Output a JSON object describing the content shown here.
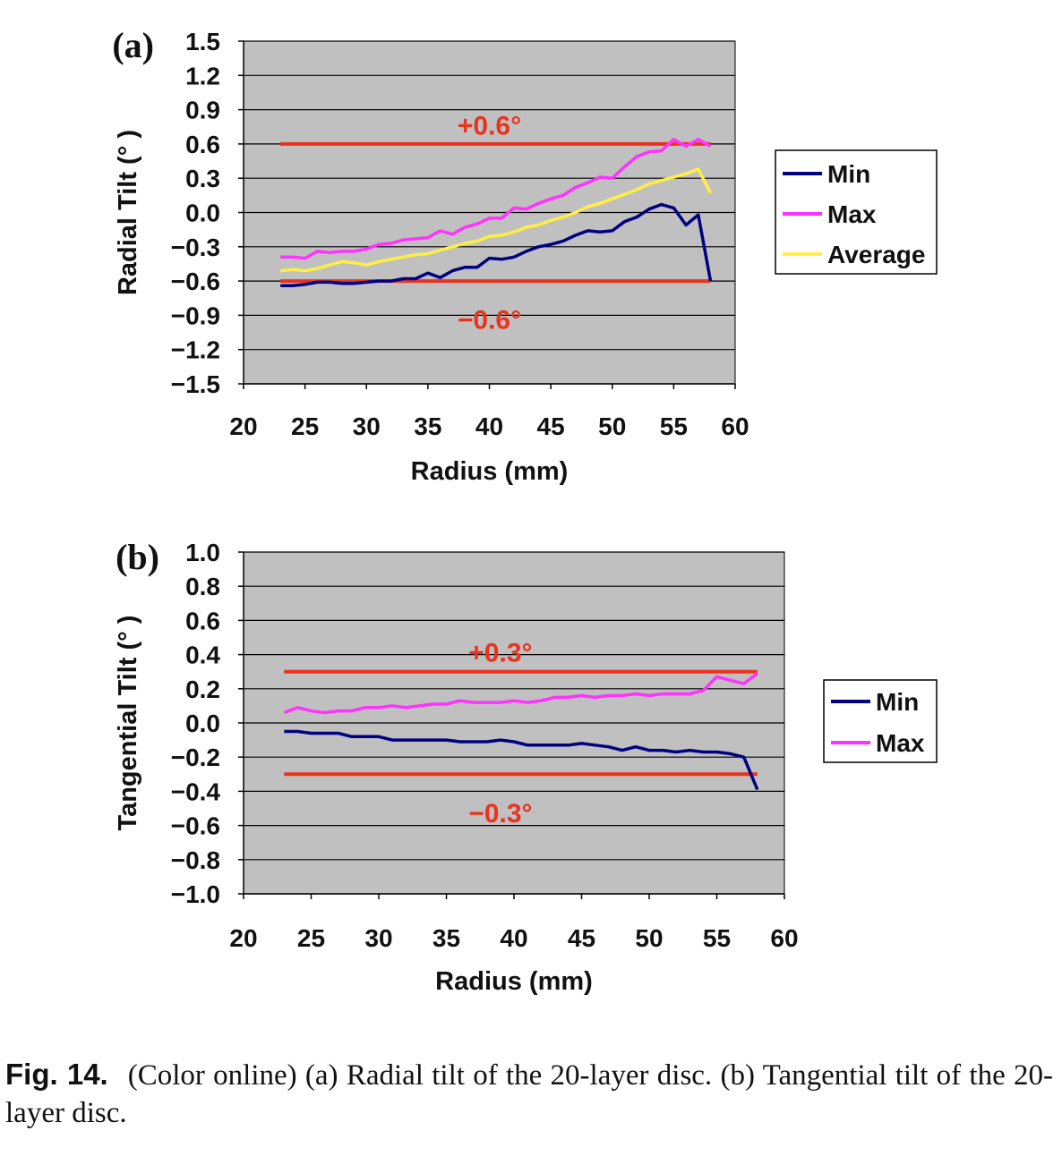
{
  "chart_data": [
    {
      "panel": "(a)",
      "type": "line",
      "xlabel": "Radius (mm)",
      "ylabel": "Radial Tilt (° )",
      "xlim": [
        20,
        60
      ],
      "ylim": [
        -1.5,
        1.5
      ],
      "xticks": [
        "20",
        "25",
        "30",
        "35",
        "40",
        "45",
        "50",
        "55",
        "60"
      ],
      "yticks": [
        "1.5",
        "1.2",
        "0.9",
        "0.6",
        "0.3",
        "0.0",
        "−0.3",
        "−0.6",
        "−0.9",
        "−1.2",
        "−1.5"
      ],
      "ytick_values": [
        1.5,
        1.2,
        0.9,
        0.6,
        0.3,
        0.0,
        -0.3,
        -0.6,
        -0.9,
        -1.2,
        -1.5
      ],
      "grid": true,
      "plot_background": "#c0c0c0",
      "legend_placement": "right",
      "x": [
        23,
        24,
        25,
        26,
        27,
        28,
        29,
        30,
        31,
        32,
        33,
        34,
        35,
        36,
        37,
        38,
        39,
        40,
        41,
        42,
        43,
        44,
        45,
        46,
        47,
        48,
        49,
        50,
        51,
        52,
        53,
        54,
        55,
        56,
        57,
        58
      ],
      "series": [
        {
          "name": "Min",
          "color": "#000080",
          "values": [
            -0.64,
            -0.64,
            -0.63,
            -0.61,
            -0.61,
            -0.62,
            -0.62,
            -0.61,
            -0.6,
            -0.6,
            -0.58,
            -0.58,
            -0.53,
            -0.57,
            -0.51,
            -0.48,
            -0.48,
            -0.4,
            -0.41,
            -0.39,
            -0.34,
            -0.3,
            -0.28,
            -0.25,
            -0.2,
            -0.16,
            -0.17,
            -0.16,
            -0.08,
            -0.04,
            0.03,
            0.07,
            0.04,
            -0.11,
            -0.02,
            -0.6
          ]
        },
        {
          "name": "Max",
          "color": "#ff33ff",
          "values": [
            -0.39,
            -0.39,
            -0.4,
            -0.34,
            -0.35,
            -0.34,
            -0.34,
            -0.32,
            -0.28,
            -0.27,
            -0.24,
            -0.23,
            -0.22,
            -0.16,
            -0.19,
            -0.13,
            -0.1,
            -0.05,
            -0.05,
            0.04,
            0.03,
            0.08,
            0.12,
            0.15,
            0.22,
            0.26,
            0.31,
            0.3,
            0.4,
            0.49,
            0.53,
            0.54,
            0.64,
            0.58,
            0.64,
            0.58
          ]
        },
        {
          "name": "Average",
          "color": "#ffee44",
          "values": [
            -0.51,
            -0.5,
            -0.51,
            -0.49,
            -0.46,
            -0.43,
            -0.44,
            -0.46,
            -0.43,
            -0.41,
            -0.39,
            -0.37,
            -0.36,
            -0.33,
            -0.3,
            -0.27,
            -0.25,
            -0.21,
            -0.2,
            -0.17,
            -0.13,
            -0.11,
            -0.07,
            -0.04,
            0.0,
            0.05,
            0.08,
            0.12,
            0.16,
            0.2,
            0.25,
            0.28,
            0.31,
            0.34,
            0.38,
            0.17
          ]
        }
      ],
      "reference_lines": [
        {
          "y": 0.6,
          "x_range": [
            23,
            58
          ],
          "label": "+0.6°",
          "label_x": 40,
          "label_y": 0.76
        },
        {
          "y": -0.6,
          "x_range": [
            23,
            58
          ],
          "label": "−0.6°",
          "label_x": 40,
          "label_y": -0.94
        }
      ],
      "colors": {
        "reference": "#e8331f",
        "legend_border": "#000000"
      }
    },
    {
      "panel": "(b)",
      "type": "line",
      "xlabel": "Radius (mm)",
      "ylabel": "Tangential Tilt (° )",
      "xlim": [
        20,
        60
      ],
      "ylim": [
        -1.0,
        1.0
      ],
      "xticks": [
        "20",
        "25",
        "30",
        "35",
        "40",
        "45",
        "50",
        "55",
        "60"
      ],
      "yticks": [
        "1.0",
        "0.8",
        "0.6",
        "0.4",
        "0.2",
        "0.0",
        "−0.2",
        "−0.4",
        "−0.6",
        "−0.8",
        "−1.0"
      ],
      "ytick_values": [
        1.0,
        0.8,
        0.6,
        0.4,
        0.2,
        0.0,
        -0.2,
        -0.4,
        -0.6,
        -0.8,
        -1.0
      ],
      "grid": true,
      "plot_background": "#c0c0c0",
      "legend_placement": "right",
      "x": [
        23,
        24,
        25,
        26,
        27,
        28,
        29,
        30,
        31,
        32,
        33,
        34,
        35,
        36,
        37,
        38,
        39,
        40,
        41,
        42,
        43,
        44,
        45,
        46,
        47,
        48,
        49,
        50,
        51,
        52,
        53,
        54,
        55,
        56,
        57,
        58
      ],
      "series": [
        {
          "name": "Min",
          "color": "#000080",
          "values": [
            -0.05,
            -0.05,
            -0.06,
            -0.06,
            -0.06,
            -0.08,
            -0.08,
            -0.08,
            -0.1,
            -0.1,
            -0.1,
            -0.1,
            -0.1,
            -0.11,
            -0.11,
            -0.11,
            -0.1,
            -0.11,
            -0.13,
            -0.13,
            -0.13,
            -0.13,
            -0.12,
            -0.13,
            -0.14,
            -0.16,
            -0.14,
            -0.16,
            -0.16,
            -0.17,
            -0.16,
            -0.17,
            -0.17,
            -0.18,
            -0.2,
            -0.39
          ]
        },
        {
          "name": "Max",
          "color": "#ff33ff",
          "values": [
            0.06,
            0.09,
            0.07,
            0.06,
            0.07,
            0.07,
            0.09,
            0.09,
            0.1,
            0.09,
            0.1,
            0.11,
            0.11,
            0.13,
            0.12,
            0.12,
            0.12,
            0.13,
            0.12,
            0.13,
            0.15,
            0.15,
            0.16,
            0.15,
            0.16,
            0.16,
            0.17,
            0.16,
            0.17,
            0.17,
            0.17,
            0.19,
            0.27,
            0.25,
            0.23,
            0.29
          ]
        }
      ],
      "reference_lines": [
        {
          "y": 0.3,
          "x_range": [
            23,
            58
          ],
          "label": "+0.3°",
          "label_x": 39,
          "label_y": 0.41
        },
        {
          "y": -0.3,
          "x_range": [
            23,
            58
          ],
          "label": "−0.3°",
          "label_x": 39,
          "label_y": -0.53
        }
      ],
      "colors": {
        "reference": "#e8331f",
        "legend_border": "#000000"
      }
    }
  ],
  "caption": {
    "label": "Fig. 14.",
    "text": "(Color online) (a) Radial tilt of the 20-layer disc. (b) Tangential tilt of the 20-layer disc."
  }
}
